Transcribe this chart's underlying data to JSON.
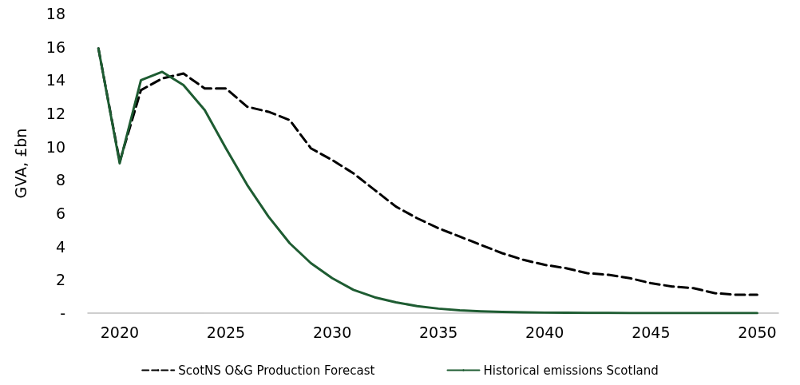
{
  "chart_data": {
    "type": "line",
    "ylabel": "GVA, £bn",
    "x": [
      2019,
      2020,
      2021,
      2022,
      2023,
      2024,
      2025,
      2026,
      2027,
      2028,
      2029,
      2030,
      2031,
      2032,
      2033,
      2034,
      2035,
      2036,
      2037,
      2038,
      2039,
      2040,
      2041,
      2042,
      2043,
      2044,
      2045,
      2046,
      2047,
      2048,
      2049,
      2050
    ],
    "xlim": [
      2018.5,
      2051
    ],
    "xticks": [
      2020,
      2025,
      2030,
      2035,
      2040,
      2045,
      2050
    ],
    "ylim": [
      0,
      18
    ],
    "yticks": [
      {
        "value": 0,
        "label": "-"
      },
      2,
      4,
      6,
      8,
      10,
      12,
      14,
      16,
      18
    ],
    "grid": false,
    "legend": "bottom",
    "marker": "none",
    "series": [
      {
        "name": "ScotNS O&G Production Forecast",
        "color": "#000000",
        "line_style": "dashed",
        "values": [
          15.9,
          9.1,
          13.4,
          14.1,
          14.4,
          13.5,
          13.5,
          12.4,
          12.1,
          11.6,
          9.9,
          9.2,
          8.4,
          7.4,
          6.4,
          5.7,
          5.1,
          4.6,
          4.1,
          3.6,
          3.2,
          2.9,
          2.7,
          2.4,
          2.3,
          2.1,
          1.8,
          1.6,
          1.5,
          1.2,
          1.1,
          1.1
        ]
      },
      {
        "name": "Historical emissions Scotland",
        "color": "#1e5c32",
        "line_style": "solid",
        "values": [
          15.9,
          9.0,
          14.0,
          14.5,
          13.7,
          12.2,
          9.9,
          7.7,
          5.8,
          4.2,
          3.0,
          2.1,
          1.4,
          0.95,
          0.65,
          0.42,
          0.27,
          0.17,
          0.11,
          0.07,
          0.05,
          0.03,
          0.02,
          0.01,
          0.01,
          0,
          0,
          0,
          0,
          0,
          0,
          0
        ]
      }
    ]
  }
}
